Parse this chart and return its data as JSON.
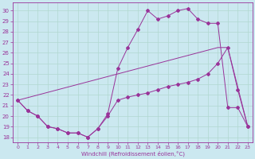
{
  "xlabel": "Windchill (Refroidissement éolien,°C)",
  "bg_color": "#cbe8f0",
  "line_color": "#993399",
  "grid_color": "#b0d8d0",
  "xlim": [
    -0.5,
    23.5
  ],
  "ylim": [
    17.5,
    30.8
  ],
  "xticks": [
    0,
    1,
    2,
    3,
    4,
    5,
    6,
    7,
    8,
    9,
    10,
    11,
    12,
    13,
    14,
    15,
    16,
    17,
    18,
    19,
    20,
    21,
    22,
    23
  ],
  "yticks": [
    18,
    19,
    20,
    21,
    22,
    23,
    24,
    25,
    26,
    27,
    28,
    29,
    30
  ],
  "line1_x": [
    0,
    1,
    2,
    3,
    4,
    5,
    6,
    7,
    8,
    9,
    10,
    11,
    12,
    13,
    14,
    15,
    16,
    17,
    18,
    19,
    20,
    21,
    22,
    23
  ],
  "line1_y": [
    21.5,
    20.5,
    20.0,
    19.0,
    18.8,
    18.4,
    18.4,
    18.0,
    18.8,
    20.0,
    21.5,
    21.8,
    22.0,
    22.2,
    22.5,
    22.8,
    23.0,
    23.2,
    23.5,
    24.0,
    25.0,
    26.5,
    22.5,
    19.0
  ],
  "line2_x": [
    0,
    1,
    2,
    3,
    4,
    5,
    6,
    7,
    8,
    9,
    10,
    11,
    12,
    13,
    14,
    15,
    16,
    17,
    18,
    19,
    20,
    21,
    22,
    23
  ],
  "line2_y": [
    21.5,
    20.5,
    20.0,
    19.0,
    18.8,
    18.4,
    18.4,
    18.0,
    18.8,
    20.2,
    24.5,
    26.5,
    28.2,
    30.0,
    29.2,
    29.5,
    30.0,
    30.2,
    29.2,
    28.8,
    28.8,
    20.8,
    20.8,
    19.0
  ],
  "line3_x": [
    0,
    20,
    21,
    23
  ],
  "line3_y": [
    21.5,
    26.5,
    26.5,
    19.0
  ]
}
